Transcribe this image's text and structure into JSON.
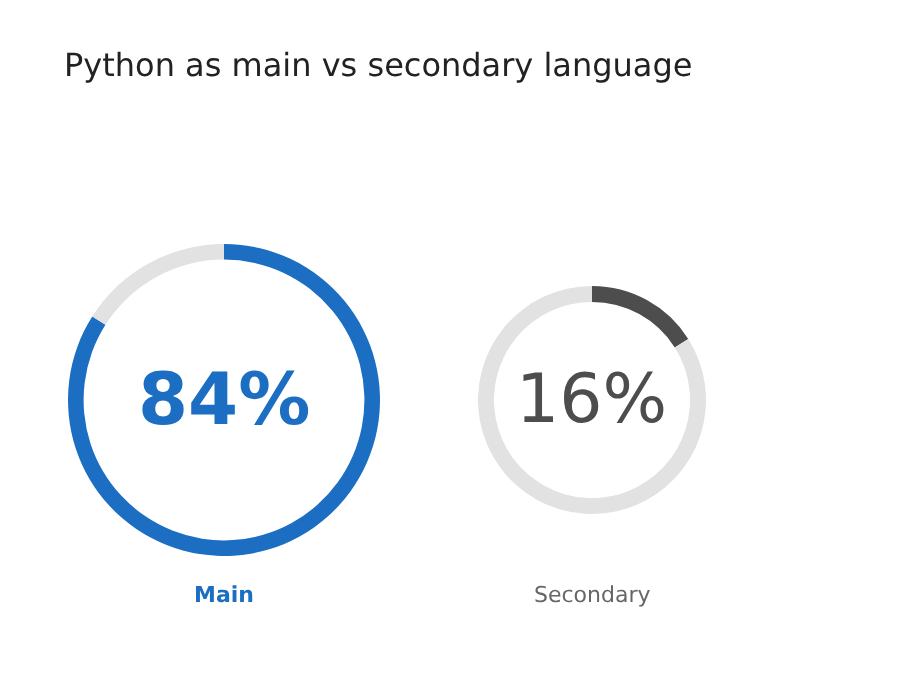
{
  "chart_data": [
    {
      "type": "donut",
      "title": "Python as main vs secondary language",
      "categories": [
        null,
        null
      ],
      "values": [
        84,
        16
      ],
      "colors": [
        "#1b6ec2",
        "#e2e2e2"
      ],
      "value_labels": [
        "84%",
        null
      ],
      "xlabel": "Main"
    },
    {
      "type": "donut",
      "categories": [
        null,
        null
      ],
      "values": [
        16,
        84
      ],
      "colors": [
        "#4d4d4d",
        "#e2e2e2"
      ],
      "value_labels": [
        "16%",
        null
      ],
      "xlabel": "Secondary"
    }
  ]
}
